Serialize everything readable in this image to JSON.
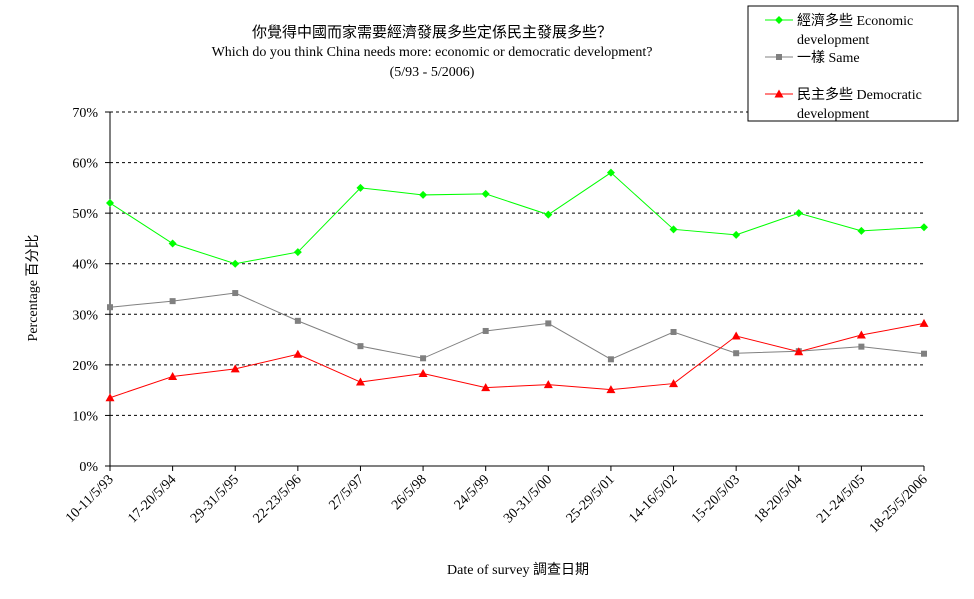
{
  "chart_data": {
    "type": "line",
    "title": "你覺得中國而家需要經濟發展多些定係民主發展多些？",
    "subtitle": "Which do you think China needs more: economic or democratic development?",
    "period": "(5/93 - 5/2006)",
    "xlabel": "Date of survey  調查日期",
    "ylabel": "Percentage  百分比",
    "ylim": [
      0,
      70
    ],
    "y_ticks": [
      "0%",
      "10%",
      "20%",
      "30%",
      "40%",
      "50%",
      "60%",
      "70%"
    ],
    "grid": "horizontal dashed",
    "legend_position": "top-right",
    "categories": [
      "10-11/5/93",
      "17-20/5/94",
      "29-31/5/95",
      "22-23/5/96",
      "27/5/97",
      "26/5/98",
      "24/5/99",
      "30-31/5/00",
      "25-29/5/01",
      "14-16/5/02",
      "15-20/5/03",
      "18-20/5/04",
      "21-24/5/05",
      "18-25/5/2006"
    ],
    "series": [
      {
        "name": "經濟多些 Economic development",
        "color": "#00ff00",
        "marker": "diamond",
        "values": [
          52,
          44,
          40,
          42.3,
          55,
          53.6,
          53.8,
          49.7,
          58,
          46.8,
          45.7,
          50,
          46.5,
          47.2
        ]
      },
      {
        "name": "一樣 Same",
        "color": "#808080",
        "marker": "square",
        "values": [
          31.4,
          32.6,
          34.2,
          28.7,
          23.7,
          21.3,
          26.7,
          28.2,
          21.1,
          26.5,
          22.3,
          22.7,
          23.6,
          22.2
        ]
      },
      {
        "name": "民主多些 Democratic development",
        "color": "#ff0000",
        "marker": "triangle",
        "values": [
          13.5,
          17.7,
          19.2,
          22.1,
          16.6,
          18.3,
          15.5,
          16.1,
          15.1,
          16.3,
          25.7,
          22.6,
          25.9,
          28.2
        ]
      }
    ]
  }
}
